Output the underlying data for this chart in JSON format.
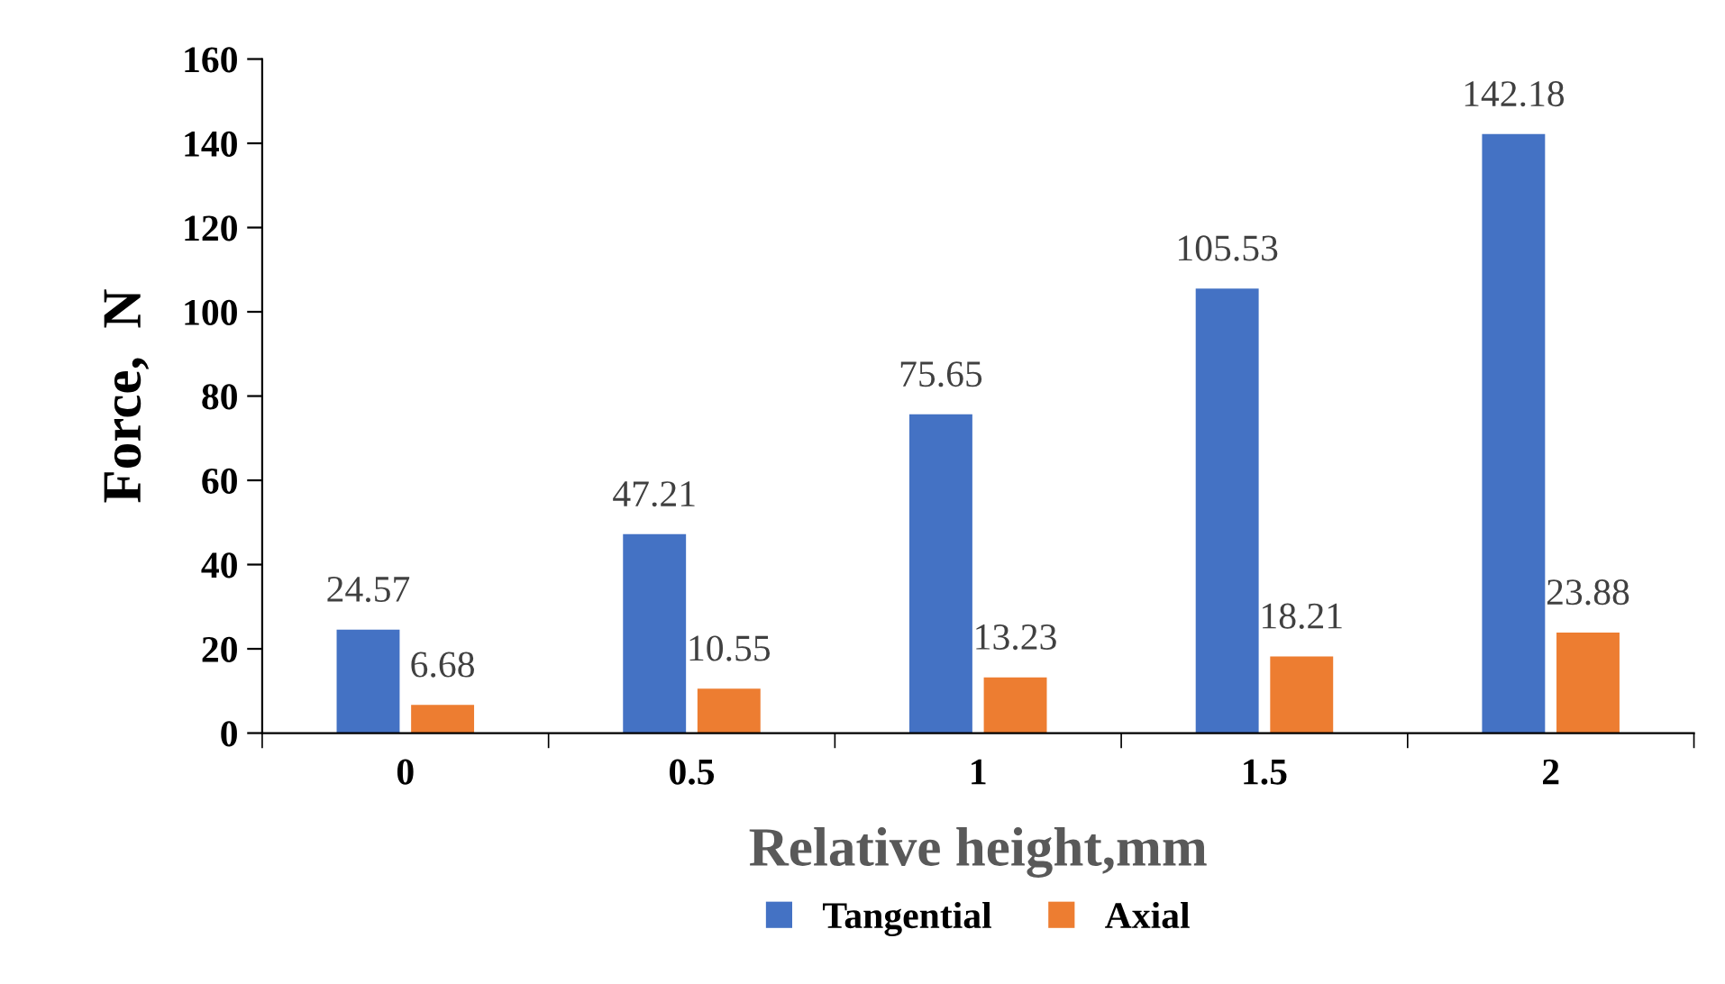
{
  "chart_data": {
    "type": "bar",
    "xlabel": "Relative height,mm",
    "ylabel": "Force,  N",
    "categories": [
      "0",
      "0.5",
      "1",
      "1.5",
      "2"
    ],
    "series": [
      {
        "name": "Tangential",
        "color": "#4472c4",
        "values": [
          24.57,
          47.21,
          75.65,
          105.53,
          142.18
        ]
      },
      {
        "name": "Axial",
        "color": "#ed7d31",
        "values": [
          6.68,
          10.55,
          13.23,
          18.21,
          23.88
        ]
      }
    ],
    "ylim": [
      0,
      160
    ],
    "yticks": [
      0,
      20,
      40,
      60,
      80,
      100,
      120,
      140,
      160
    ],
    "data_labels": true,
    "grid": false,
    "legend": "bottom"
  }
}
